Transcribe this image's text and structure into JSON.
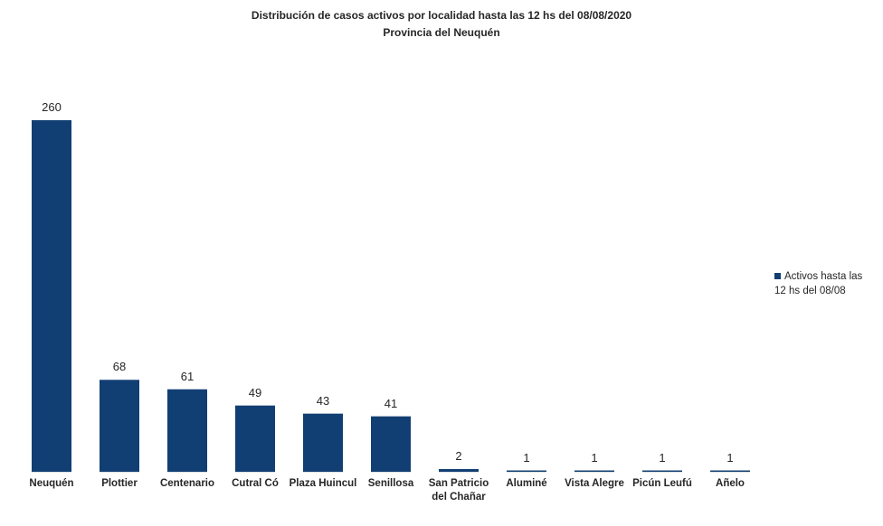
{
  "chart_data": {
    "type": "bar",
    "title": "Distribución de casos activos por localidad hasta las 12 hs del  08/08/2020",
    "subtitle": "Provincia del Neuquén",
    "categories": [
      "Neuquén",
      "Plottier",
      "Centenario",
      "Cutral Có",
      "Plaza Huincul",
      "Senillosa",
      "San Patricio del Chañar",
      "Aluminé",
      "Vista Alegre",
      "Picún Leufú",
      "Añelo"
    ],
    "series": [
      {
        "name": "Activos hasta las 12 hs del 08/08",
        "color": "#123f73",
        "values": [
          260,
          68,
          61,
          49,
          43,
          41,
          2,
          1,
          1,
          1,
          1
        ]
      }
    ],
    "legend": "right"
  }
}
